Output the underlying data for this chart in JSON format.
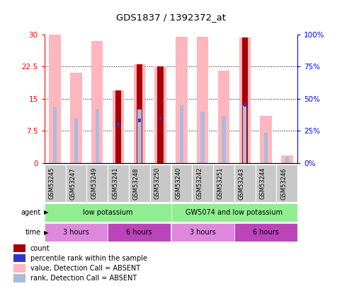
{
  "title": "GDS1837 / 1392372_at",
  "samples": [
    "GSM53245",
    "GSM53247",
    "GSM53249",
    "GSM53241",
    "GSM53248",
    "GSM53250",
    "GSM53240",
    "GSM53242",
    "GSM53251",
    "GSM53243",
    "GSM53244",
    "GSM53246"
  ],
  "pink_bar_heights": [
    30,
    21,
    28.5,
    17,
    23,
    22.5,
    29.5,
    29.5,
    21.5,
    29.2,
    11,
    1.8
  ],
  "red_bar_heights": [
    0,
    0,
    0,
    17,
    23,
    22.5,
    0,
    0,
    0,
    29.2,
    0,
    0
  ],
  "light_blue_bar_heights": [
    13,
    10.5,
    12.5,
    0,
    12.5,
    0,
    13.5,
    12,
    11,
    13.5,
    7,
    1.5
  ],
  "blue_square_heights": [
    0,
    0,
    0,
    9,
    10,
    10.5,
    0,
    0,
    0,
    13.5,
    0,
    0
  ],
  "ylim": [
    0,
    30
  ],
  "yticks_left": [
    0,
    7.5,
    15,
    22.5,
    30
  ],
  "yticks_right": [
    0,
    25,
    50,
    75,
    100
  ],
  "ytick_labels_left": [
    "0",
    "7.5",
    "15",
    "22.5",
    "30"
  ],
  "ytick_labels_right": [
    "0%",
    "25%",
    "50%",
    "75%",
    "100%"
  ],
  "agent_groups": [
    {
      "label": "low potassium",
      "start": 0,
      "end": 6,
      "color": "#90EE90"
    },
    {
      "label": "GW5074 and low potassium",
      "start": 6,
      "end": 12,
      "color": "#90EE90"
    }
  ],
  "time_groups": [
    {
      "label": "3 hours",
      "start": 0,
      "end": 3,
      "color": "#DD88DD"
    },
    {
      "label": "6 hours",
      "start": 3,
      "end": 6,
      "color": "#BB44BB"
    },
    {
      "label": "3 hours",
      "start": 6,
      "end": 9,
      "color": "#DD88DD"
    },
    {
      "label": "6 hours",
      "start": 9,
      "end": 12,
      "color": "#BB44BB"
    }
  ],
  "pink_color": "#FFB6BE",
  "red_color": "#AA0000",
  "light_blue_color": "#AABBDD",
  "blue_color": "#3333CC",
  "legend_items": [
    {
      "color": "#AA0000",
      "label": "count"
    },
    {
      "color": "#3333CC",
      "label": "percentile rank within the sample"
    },
    {
      "color": "#FFB6BE",
      "label": "value, Detection Call = ABSENT"
    },
    {
      "color": "#AABBDD",
      "label": "rank, Detection Call = ABSENT"
    }
  ]
}
